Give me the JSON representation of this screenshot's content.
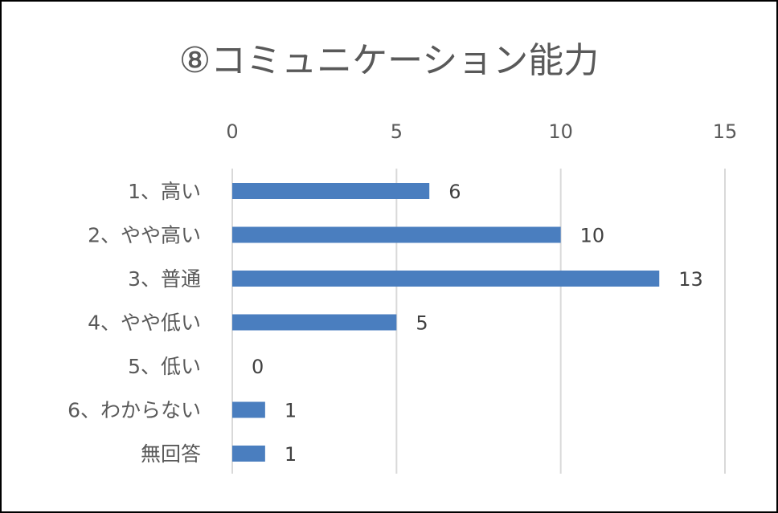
{
  "chart_data": {
    "type": "bar",
    "orientation": "horizontal",
    "title": "⑧コミュニケーション能力",
    "categories": [
      "1、高い",
      "2、やや高い",
      "3、普通",
      "4、やや低い",
      "5、低い",
      "6、わからない",
      "無回答"
    ],
    "values": [
      6,
      10,
      13,
      5,
      0,
      1,
      1
    ],
    "xlim": [
      0,
      15
    ],
    "x_ticks": [
      0,
      5,
      10,
      15
    ],
    "x_axis_position": "top",
    "grid": true,
    "data_labels": true,
    "legend": "none",
    "bar_color": "#4a7ebf",
    "grid_color": "#d9d9d9",
    "text_color": "#595959"
  }
}
